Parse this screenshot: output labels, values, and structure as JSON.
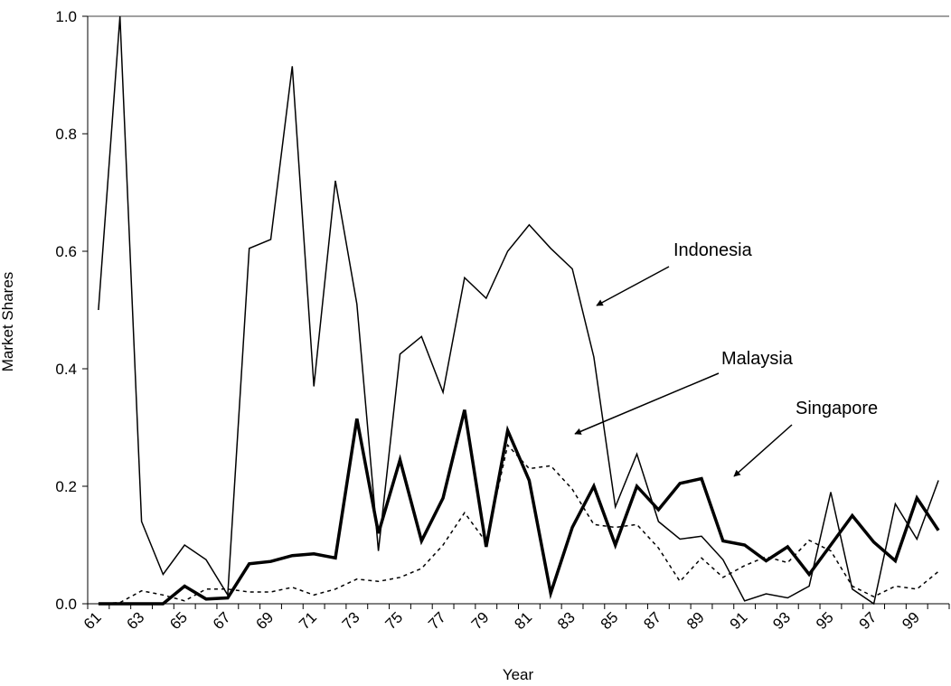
{
  "chart_data": {
    "type": "line",
    "x_label": "Year",
    "y_label": "Market Shares",
    "categories": [
      "61",
      null,
      "63",
      null,
      "65",
      null,
      "67",
      null,
      "69",
      null,
      "71",
      null,
      "73",
      null,
      "75",
      null,
      "77",
      null,
      "79",
      null,
      "81",
      null,
      "83",
      null,
      "85",
      null,
      "87",
      null,
      "89",
      null,
      "91",
      null,
      "93",
      null,
      "95",
      null,
      "97",
      null,
      "99",
      null
    ],
    "series": [
      {
        "name": "Indonesia",
        "color": "#000000",
        "linewidth": 1.5,
        "linestyle": "solid",
        "values": [
          0.5,
          1.0,
          0.14,
          0.05,
          0.1,
          0.075,
          0.015,
          0.605,
          0.62,
          0.915,
          0.37,
          0.72,
          0.51,
          0.09,
          0.425,
          0.455,
          0.36,
          0.555,
          0.52,
          0.6,
          0.645,
          0.605,
          0.57,
          0.42,
          0.165,
          0.255,
          0.14,
          0.11,
          0.115,
          0.075,
          0.005,
          0.017,
          0.01,
          0.03,
          0.19,
          0.025,
          0.0,
          0.17,
          0.11,
          0.21
        ]
      },
      {
        "name": "Malaysia",
        "color": "#000000",
        "linewidth": 1.5,
        "linestyle": "dashed",
        "values": [
          0.0,
          0.002,
          0.022,
          0.015,
          0.005,
          0.025,
          0.025,
          0.02,
          0.02,
          0.028,
          0.015,
          0.025,
          0.042,
          0.038,
          0.045,
          0.06,
          0.1,
          0.155,
          0.105,
          0.27,
          0.23,
          0.235,
          0.195,
          0.135,
          0.13,
          0.135,
          0.095,
          0.038,
          0.078,
          0.045,
          0.065,
          0.08,
          0.07,
          0.108,
          0.09,
          0.03,
          0.012,
          0.03,
          0.025,
          0.055
        ]
      },
      {
        "name": "Singapore",
        "color": "#000000",
        "linewidth": 3.5,
        "linestyle": "solid",
        "values": [
          0.0,
          0.0,
          0.0,
          0.0,
          0.03,
          0.008,
          0.01,
          0.068,
          0.072,
          0.082,
          0.085,
          0.078,
          0.315,
          0.12,
          0.245,
          0.107,
          0.18,
          0.33,
          0.097,
          0.295,
          0.21,
          0.018,
          0.13,
          0.2,
          0.1,
          0.2,
          0.16,
          0.205,
          0.213,
          0.107,
          0.1,
          0.073,
          0.097,
          0.05,
          0.1,
          0.15,
          0.105,
          0.073,
          0.18,
          0.125
        ]
      }
    ],
    "ylim": [
      0,
      1.0
    ],
    "yticks": [
      {
        "value": 0,
        "label": "0.0"
      },
      0.2,
      0.4,
      0.6,
      0.8,
      {
        "value": 1.0,
        "label": "1.0"
      }
    ]
  }
}
